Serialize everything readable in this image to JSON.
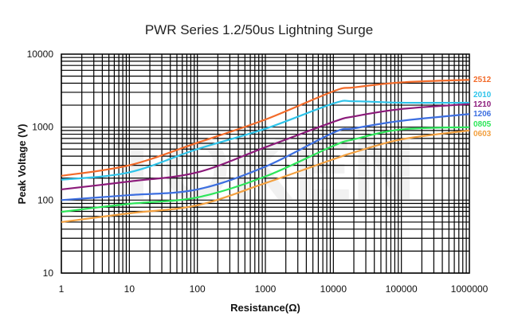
{
  "chart_data": {
    "type": "line",
    "title": "PWR Series 1.2/50us Lightning Surge",
    "xlabel": "Resistance(Ω)",
    "ylabel": "Peak Voltage (V)",
    "x_scale": "log",
    "y_scale": "log",
    "xlim": [
      1,
      1000000
    ],
    "ylim": [
      10,
      10000
    ],
    "grid": true,
    "legend": "right-edge labels",
    "x_ticks": [
      "1",
      "10",
      "100",
      "1000",
      "10000",
      "100000",
      "1000000"
    ],
    "y_ticks": [
      "10",
      "100",
      "1000",
      "10000"
    ],
    "x": [
      1,
      10,
      100,
      1000,
      10000,
      20000,
      100000,
      1000000
    ],
    "series": [
      {
        "name": "2512",
        "color": "#f26b2a",
        "values": [
          215,
          300,
          610,
          1270,
          3100,
          3500,
          4100,
          4450
        ]
      },
      {
        "name": "2010",
        "color": "#2ec4ea",
        "values": [
          190,
          240,
          500,
          950,
          2110,
          2260,
          2160,
          2160
        ]
      },
      {
        "name": "1210",
        "color": "#8b1a7a",
        "values": [
          140,
          180,
          240,
          530,
          1180,
          1400,
          1770,
          2070
        ]
      },
      {
        "name": "1206",
        "color": "#3d6fe0",
        "values": [
          100,
          117,
          140,
          288,
          840,
          960,
          1220,
          1510
        ]
      },
      {
        "name": "0805",
        "color": "#2ee65a",
        "values": [
          69,
          89,
          109,
          211,
          555,
          680,
          930,
          1000
        ]
      },
      {
        "name": "0603",
        "color": "#f2a040",
        "values": [
          50,
          66,
          85,
          171,
          363,
          450,
          680,
          900
        ]
      }
    ]
  },
  "watermark": "TOKEN"
}
